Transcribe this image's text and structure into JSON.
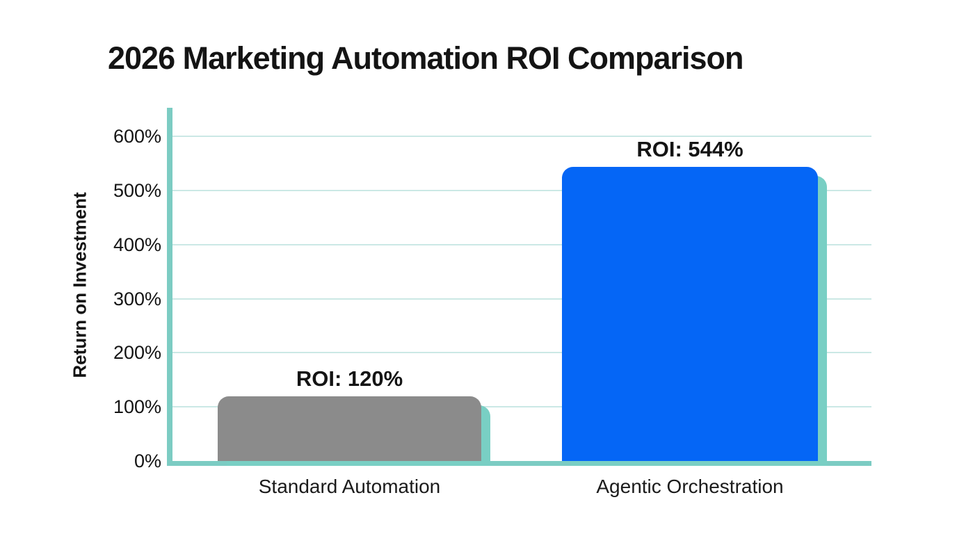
{
  "chart_data": {
    "type": "bar",
    "title": "2026 Marketing Automation ROI Comparison",
    "ylabel": "Return on Investment",
    "xlabel": "",
    "categories": [
      "Standard Automation",
      "Agentic Orchestration"
    ],
    "values": [
      120,
      544
    ],
    "bar_labels": [
      "ROI: 120%",
      "ROI: 544%"
    ],
    "yticks": [
      0,
      100,
      200,
      300,
      400,
      500,
      600
    ],
    "ytick_labels": [
      "0%",
      "100%",
      "200%",
      "300%",
      "400%",
      "500%",
      "600%"
    ],
    "ylim": [
      0,
      650
    ],
    "grid": true,
    "legend": false,
    "colors": {
      "bars": [
        "#8b8b8b",
        "#0566f6"
      ],
      "bar_shadow": "#79cfc4",
      "axis": "#7cccc3",
      "gridline": "#cbe8e5",
      "text": "#141414"
    }
  }
}
